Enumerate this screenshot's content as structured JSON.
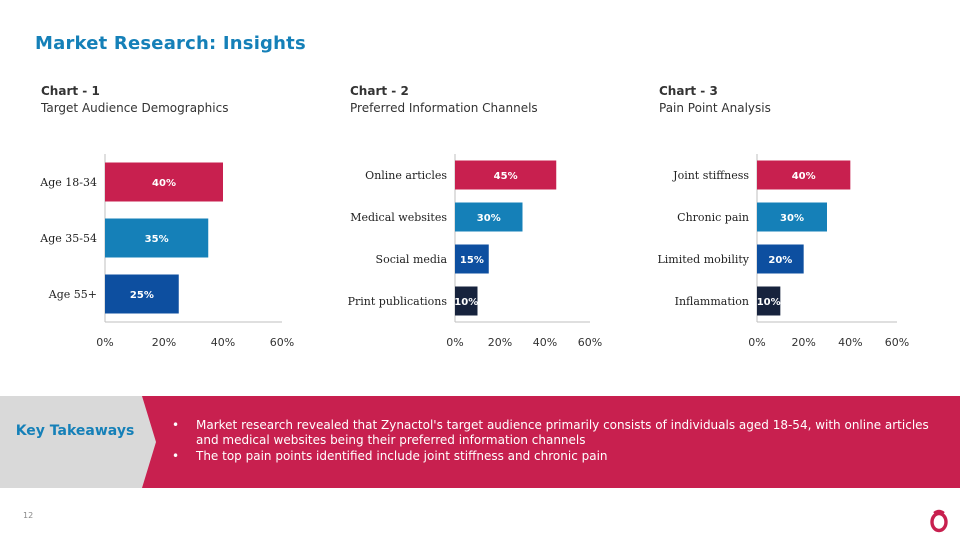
{
  "page": {
    "title": "Market Research: Insights",
    "page_number": "12"
  },
  "colors": {
    "title_blue": "#1580b8",
    "crimson": "#c8204f",
    "light_blue": "#1580b8",
    "dark_blue": "#0d4fa0",
    "navy": "#17233d",
    "band_grey": "#d9d9d9"
  },
  "charts": [
    {
      "number": "Chart - 1",
      "subtitle": "Target Audience Demographics"
    },
    {
      "number": "Chart - 2",
      "subtitle": "Preferred Information Channels"
    },
    {
      "number": "Chart - 3",
      "subtitle": "Pain Point Analysis"
    }
  ],
  "chart_data": [
    {
      "type": "bar",
      "orientation": "horizontal",
      "categories": [
        "Age 18-34",
        "Age 35-54",
        "Age 55+"
      ],
      "values": [
        40,
        35,
        25
      ],
      "data_labels": [
        "40%",
        "35%",
        "25%"
      ],
      "bar_colors": [
        "#c8204f",
        "#1580b8",
        "#0d4fa0"
      ],
      "xlim": [
        0,
        60
      ],
      "x_ticks": [
        "0%",
        "20%",
        "40%",
        "60%"
      ],
      "grid": false
    },
    {
      "type": "bar",
      "orientation": "horizontal",
      "categories": [
        "Online articles",
        "Medical websites",
        "Social media",
        "Print publications"
      ],
      "values": [
        45,
        30,
        15,
        10
      ],
      "data_labels": [
        "45%",
        "30%",
        "15%",
        "10%"
      ],
      "bar_colors": [
        "#c8204f",
        "#1580b8",
        "#0d4fa0",
        "#17233d"
      ],
      "xlim": [
        0,
        60
      ],
      "x_ticks": [
        "0%",
        "20%",
        "40%",
        "60%"
      ],
      "grid": false
    },
    {
      "type": "bar",
      "orientation": "horizontal",
      "categories": [
        "Joint stiffness",
        "Chronic pain",
        "Limited mobility",
        "Inflammation"
      ],
      "values": [
        40,
        30,
        20,
        10
      ],
      "data_labels": [
        "40%",
        "30%",
        "20%",
        "10%"
      ],
      "bar_colors": [
        "#c8204f",
        "#1580b8",
        "#0d4fa0",
        "#17233d"
      ],
      "xlim": [
        0,
        60
      ],
      "x_ticks": [
        "0%",
        "20%",
        "40%",
        "60%"
      ],
      "grid": false
    }
  ],
  "takeaways": {
    "label": "Key Takeaways",
    "items": [
      "Market research revealed that Zynactol's target audience primarily consists of individuals aged 18-54, with online articles and medical websites being their preferred information channels",
      "The top pain points identified include joint stiffness and chronic pain"
    ]
  }
}
